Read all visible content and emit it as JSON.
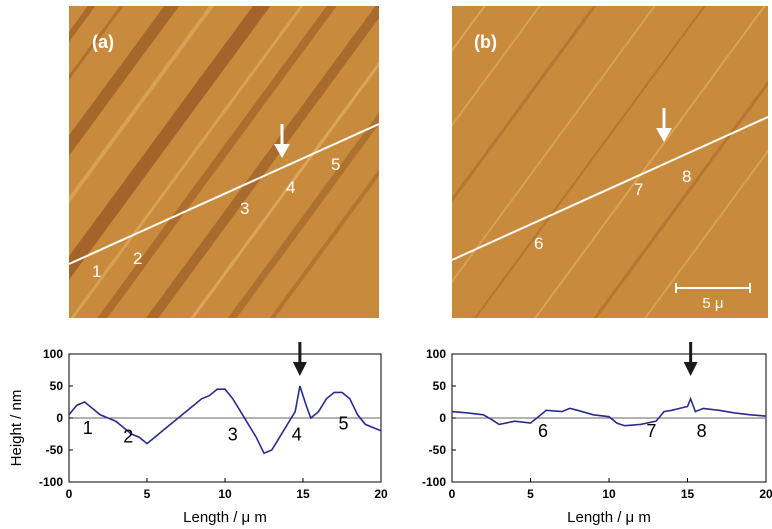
{
  "images": [
    {
      "panel_label": "(a)",
      "points": [
        "1",
        "2",
        "3",
        "4",
        "5"
      ],
      "scale_bar": ""
    },
    {
      "panel_label": "(b)",
      "points": [
        "6",
        "7",
        "8"
      ],
      "scale_bar": "5 μ"
    }
  ],
  "colors": {
    "image_base": "#c88a3c",
    "image_dark": "#8a4a1e",
    "image_light": "#e8b870",
    "profile_line": "#2b2b8f",
    "arrow": "#1a1a1a"
  },
  "chart_data": [
    {
      "type": "line",
      "title": "",
      "xlabel": "Length / μ m",
      "ylabel": "Height / nm",
      "xlim": [
        0,
        20
      ],
      "ylim": [
        -100,
        100
      ],
      "x_ticks": [
        0,
        5,
        10,
        15,
        20
      ],
      "y_ticks": [
        100,
        50,
        0,
        -50,
        -100
      ],
      "grid": false,
      "zero_line": true,
      "series": [
        {
          "x": [
            0,
            0.5,
            1,
            1.5,
            2,
            2.5,
            3,
            3.5,
            4,
            4.5,
            5,
            5.5,
            6,
            6.5,
            7,
            7.5,
            8,
            8.5,
            9,
            9.5,
            10,
            10.5,
            11,
            11.5,
            12,
            12.5,
            13,
            13.5,
            14,
            14.5,
            14.8,
            15.2,
            15.5,
            16,
            16.5,
            17,
            17.5,
            18,
            18.5,
            19,
            19.5,
            20
          ],
          "y": [
            5,
            20,
            25,
            15,
            5,
            0,
            -5,
            -15,
            -25,
            -30,
            -40,
            -30,
            -20,
            -10,
            0,
            10,
            20,
            30,
            35,
            45,
            45,
            30,
            10,
            -10,
            -30,
            -55,
            -50,
            -30,
            -10,
            10,
            50,
            20,
            0,
            10,
            30,
            40,
            40,
            30,
            5,
            -10,
            -15,
            -20
          ]
        }
      ],
      "annotations": [
        {
          "text": "1",
          "x": 1.2,
          "y": -25
        },
        {
          "text": "2",
          "x": 3.8,
          "y": -38
        },
        {
          "text": "3",
          "x": 10.5,
          "y": -35
        },
        {
          "text": "4",
          "x": 14.6,
          "y": -35
        },
        {
          "text": "5",
          "x": 17.6,
          "y": -18
        }
      ],
      "arrow_x": 14.8
    },
    {
      "type": "line",
      "title": "",
      "xlabel": "Length / μ m",
      "ylabel": "",
      "xlim": [
        0,
        20
      ],
      "ylim": [
        -100,
        100
      ],
      "x_ticks": [
        0,
        5,
        10,
        15,
        20
      ],
      "y_ticks": [
        100,
        50,
        0,
        -50,
        -100
      ],
      "grid": false,
      "zero_line": true,
      "series": [
        {
          "x": [
            0,
            1,
            2,
            2.5,
            3,
            4,
            5,
            5.5,
            6,
            7,
            7.5,
            8,
            9,
            10,
            10.5,
            11,
            12,
            13,
            13.5,
            14,
            14.5,
            15,
            15.2,
            15.5,
            16,
            17,
            18,
            19,
            20
          ],
          "y": [
            10,
            8,
            5,
            -2,
            -10,
            -5,
            -8,
            2,
            12,
            10,
            15,
            12,
            5,
            2,
            -8,
            -12,
            -10,
            -5,
            10,
            12,
            15,
            18,
            30,
            10,
            15,
            12,
            8,
            5,
            3
          ]
        }
      ],
      "annotations": [
        {
          "text": "6",
          "x": 5.8,
          "y": -30
        },
        {
          "text": "7",
          "x": 12.7,
          "y": -30
        },
        {
          "text": "8",
          "x": 15.9,
          "y": -30
        }
      ],
      "arrow_x": 15.2
    }
  ]
}
